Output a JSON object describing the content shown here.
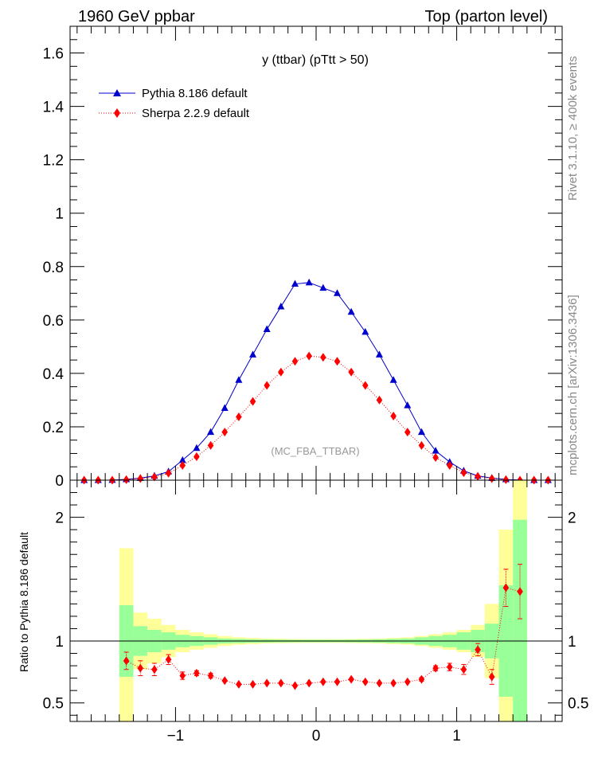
{
  "header": {
    "left": "1960 GeV ppbar",
    "right": "Top (parton level)"
  },
  "side_labels": {
    "rivet": "Rivet 3.1.10, ≥ 400k events",
    "mcplots": "mcplots.cern.ch [arXiv:1306.3436]"
  },
  "watermark": "(MC_FBA_TTBAR)",
  "colors": {
    "pythia": "#0000cc",
    "sherpa": "#ff0000",
    "band_inner": "#99ff99",
    "band_outer": "#ffff99"
  },
  "chart_data": [
    {
      "type": "line",
      "title": "y (ttbar) (pTtt > 50)",
      "xlabel": "",
      "ylabel": "",
      "xlim": [
        -1.75,
        1.75
      ],
      "ylim": [
        0,
        1.7
      ],
      "yticks": [
        0.2,
        0.4,
        0.6,
        0.8,
        1.0,
        1.2,
        1.4,
        1.6
      ],
      "ytick_labels": [
        "0.2",
        "0.4",
        "0.6",
        "0.8",
        "1",
        "1.2",
        "1.4",
        "1.6"
      ],
      "y_zero_label": "0",
      "legend": "top-left",
      "x": [
        -1.65,
        -1.55,
        -1.45,
        -1.35,
        -1.25,
        -1.15,
        -1.05,
        -0.95,
        -0.85,
        -0.75,
        -0.65,
        -0.55,
        -0.45,
        -0.35,
        -0.25,
        -0.15,
        -0.05,
        0.05,
        0.15,
        0.25,
        0.35,
        0.45,
        0.55,
        0.65,
        0.75,
        0.85,
        0.95,
        1.05,
        1.15,
        1.25,
        1.35,
        1.45,
        1.55,
        1.65
      ],
      "series": [
        {
          "name": "Pythia 8.186 default",
          "marker": "triangle",
          "values": [
            0.0,
            0.0,
            0.0005,
            0.003,
            0.008,
            0.016,
            0.032,
            0.075,
            0.12,
            0.18,
            0.27,
            0.375,
            0.47,
            0.565,
            0.65,
            0.735,
            0.74,
            0.72,
            0.7,
            0.63,
            0.555,
            0.47,
            0.375,
            0.28,
            0.18,
            0.11,
            0.068,
            0.035,
            0.016,
            0.008,
            0.003,
            0.0005,
            0.0,
            0.0
          ]
        },
        {
          "name": "Sherpa 2.2.9 default",
          "marker": "diamond",
          "values": [
            0.0,
            0.0,
            0.0,
            0.002,
            0.006,
            0.012,
            0.026,
            0.055,
            0.088,
            0.13,
            0.18,
            0.237,
            0.295,
            0.355,
            0.405,
            0.445,
            0.465,
            0.46,
            0.445,
            0.405,
            0.355,
            0.3,
            0.24,
            0.18,
            0.13,
            0.085,
            0.055,
            0.028,
            0.014,
            0.006,
            0.002,
            0.0,
            0.0,
            0.0
          ]
        }
      ]
    },
    {
      "type": "line",
      "ylabel": "Ratio to Pythia 8.186 default",
      "xlim": [
        -1.75,
        1.75
      ],
      "ylim": [
        0.35,
        2.3
      ],
      "xticks": [
        -1,
        0,
        1
      ],
      "xtick_labels": [
        "−1",
        "0",
        "1"
      ],
      "yticks": [
        0.5,
        1,
        2
      ],
      "ytick_labels": [
        "0.5",
        "1",
        "2"
      ],
      "reference_line": 1,
      "bands": {
        "edges": [
          -1.4,
          -1.3,
          -1.2,
          -1.1,
          -1.0,
          -0.9,
          -0.8,
          -0.7,
          -0.6,
          -0.5,
          -0.4,
          -0.3,
          -0.2,
          -0.1,
          0.0,
          0.1,
          0.2,
          0.3,
          0.4,
          0.5,
          0.6,
          0.7,
          0.8,
          0.9,
          1.0,
          1.1,
          1.2,
          1.3,
          1.4,
          1.5
        ],
        "inner": [
          0.29,
          0.12,
          0.09,
          0.07,
          0.05,
          0.04,
          0.03,
          0.02,
          0.017,
          0.014,
          0.012,
          0.011,
          0.01,
          0.01,
          0.01,
          0.01,
          0.011,
          0.012,
          0.014,
          0.017,
          0.02,
          0.03,
          0.04,
          0.05,
          0.07,
          0.09,
          0.14,
          0.45,
          0.98
        ],
        "outer": [
          0.75,
          0.23,
          0.18,
          0.13,
          0.09,
          0.07,
          0.055,
          0.04,
          0.03,
          0.025,
          0.02,
          0.018,
          0.016,
          0.015,
          0.015,
          0.015,
          0.016,
          0.018,
          0.02,
          0.025,
          0.03,
          0.04,
          0.055,
          0.07,
          0.09,
          0.13,
          0.3,
          0.9,
          1.5
        ]
      },
      "ratio_x": [
        -1.35,
        -1.25,
        -1.15,
        -1.05,
        -0.95,
        -0.85,
        -0.75,
        -0.65,
        -0.55,
        -0.45,
        -0.35,
        -0.25,
        -0.15,
        -0.05,
        0.05,
        0.15,
        0.25,
        0.35,
        0.45,
        0.55,
        0.65,
        0.75,
        0.85,
        0.95,
        1.05,
        1.15,
        1.25,
        1.35,
        1.45
      ],
      "ratio": {
        "name": "Sherpa 2.2.9 default",
        "values": [
          0.84,
          0.78,
          0.77,
          0.85,
          0.72,
          0.74,
          0.72,
          0.68,
          0.65,
          0.65,
          0.66,
          0.66,
          0.64,
          0.66,
          0.67,
          0.67,
          0.69,
          0.67,
          0.66,
          0.66,
          0.67,
          0.69,
          0.78,
          0.79,
          0.77,
          0.93,
          0.71,
          1.43,
          1.4
        ],
        "errors": [
          0.07,
          0.06,
          0.05,
          0.04,
          0.03,
          0.02,
          0.02,
          0.01,
          0.01,
          0.01,
          0.01,
          0.01,
          0.01,
          0.01,
          0.01,
          0.01,
          0.01,
          0.01,
          0.01,
          0.01,
          0.01,
          0.015,
          0.02,
          0.03,
          0.04,
          0.05,
          0.06,
          0.15,
          0.22
        ]
      }
    }
  ]
}
